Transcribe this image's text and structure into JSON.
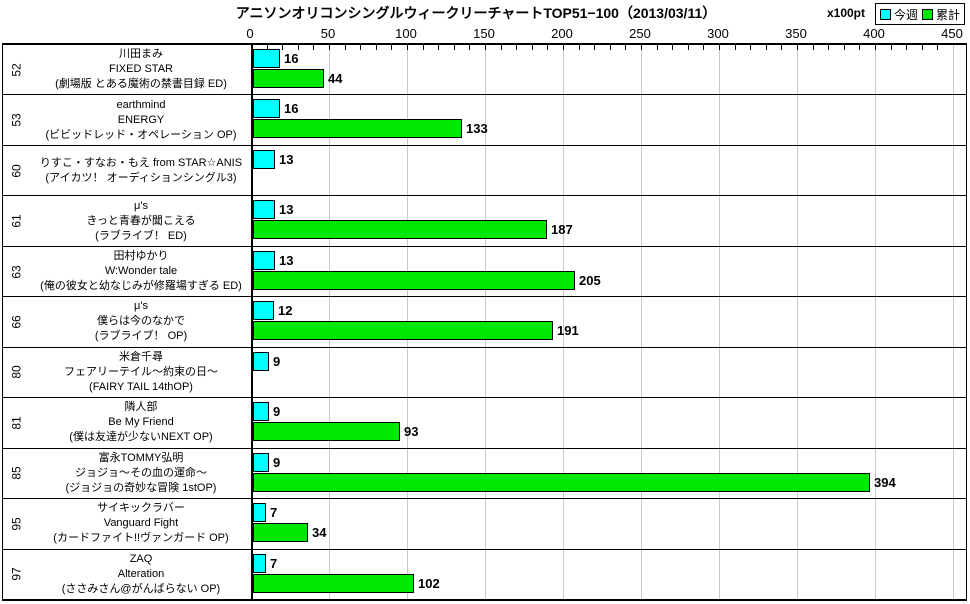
{
  "header": {
    "title": "アニソンオリコンシングルウィークリーチャートTOP51−100（2013/03/11）",
    "unit_label": "x100pt",
    "legend": [
      {
        "label": "今週",
        "color": "#00FFFF"
      },
      {
        "label": "累計",
        "color": "#00E800"
      }
    ]
  },
  "chart_data": {
    "type": "bar",
    "orientation": "horizontal",
    "title": "アニソンオリコンシングルウィークリーチャートTOP51−100（2013/03/11）",
    "unit": "x100pt",
    "xlim": [
      0,
      450
    ],
    "x_ticks": [
      0,
      50,
      100,
      150,
      200,
      250,
      300,
      350,
      400,
      450
    ],
    "grid": true,
    "legend_position": "top-right",
    "series": [
      {
        "name": "今週",
        "color": "#00FFFF"
      },
      {
        "name": "累計",
        "color": "#00E800"
      }
    ],
    "rows": [
      {
        "rank": "52",
        "artist": "川田まみ",
        "title": "FIXED STAR",
        "tiein": "(劇場版 とある魔術の禁書目録 ED)",
        "week": 16,
        "total": 44
      },
      {
        "rank": "53",
        "artist": "earthmind",
        "title": "ENERGY",
        "tiein": "(ビビッドレッド・オペレーション OP)",
        "week": 16,
        "total": 133
      },
      {
        "rank": "60",
        "artist": "りすこ・すなお・もえ from STAR☆ANIS",
        "title": null,
        "tiein": "(アイカツ！ オーディションシングル3)",
        "week": 13,
        "total": null
      },
      {
        "rank": "61",
        "artist": "μ's",
        "title": "きっと青春が聞こえる",
        "tiein": "(ラブライブ！ ED)",
        "week": 13,
        "total": 187
      },
      {
        "rank": "63",
        "artist": "田村ゆかり",
        "title": "W:Wonder tale",
        "tiein": "(俺の彼女と幼なじみが修羅場すぎる ED)",
        "week": 13,
        "total": 205
      },
      {
        "rank": "66",
        "artist": "μ's",
        "title": "僕らは今のなかで",
        "tiein": "(ラブライブ！ OP)",
        "week": 12,
        "total": 191
      },
      {
        "rank": "80",
        "artist": "米倉千尋",
        "title": "フェアリーテイル～約束の日～",
        "tiein": "(FAIRY TAIL 14thOP)",
        "week": 9,
        "total": null
      },
      {
        "rank": "81",
        "artist": "隣人部",
        "title": "Be My Friend",
        "tiein": "(僕は友達が少ないNEXT OP)",
        "week": 9,
        "total": 93
      },
      {
        "rank": "85",
        "artist": "富永TOMMY弘明",
        "title": "ジョジョ～その血の運命～",
        "tiein": "(ジョジョの奇妙な冒険 1stOP)",
        "week": 9,
        "total": 394
      },
      {
        "rank": "95",
        "artist": "サイキックラバー",
        "title": "Vanguard Fight",
        "tiein": "(カードファイト!!ヴァンガード OP)",
        "week": 7,
        "total": 34
      },
      {
        "rank": "97",
        "artist": "ZAQ",
        "title": "Alteration",
        "tiein": "(ささみさん@がんばらない OP)",
        "week": 7,
        "total": 102
      }
    ]
  }
}
